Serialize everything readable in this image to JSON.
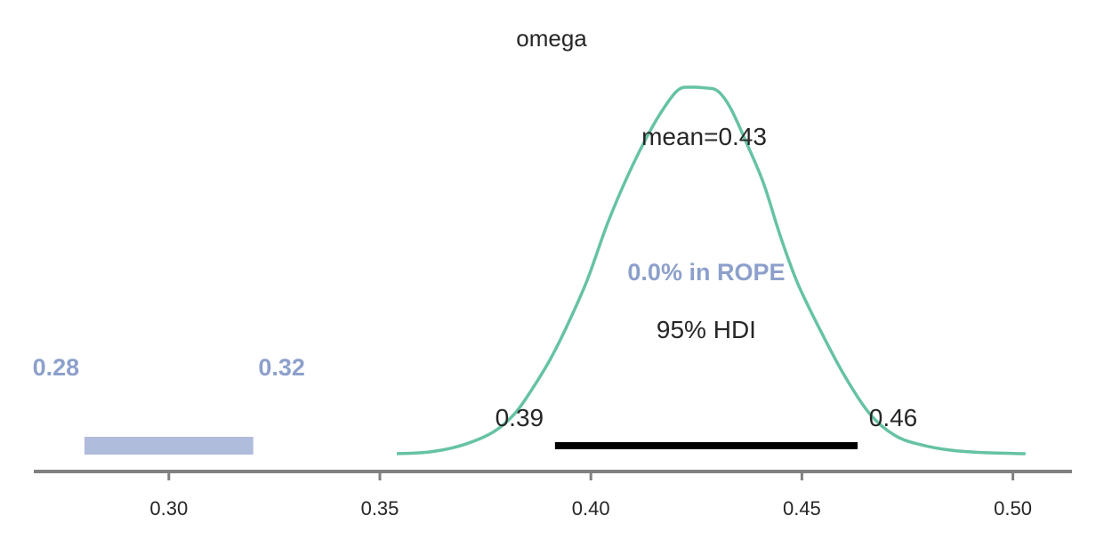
{
  "chart_data": {
    "type": "area",
    "title": "omega",
    "xlabel": "",
    "ylabel": "",
    "xlim": [
      0.268,
      0.514
    ],
    "grid": false,
    "x_ticks": [
      {
        "value": 0.3,
        "label": "0.30"
      },
      {
        "value": 0.35,
        "label": "0.35"
      },
      {
        "value": 0.4,
        "label": "0.40"
      },
      {
        "value": 0.45,
        "label": "0.45"
      },
      {
        "value": 0.5,
        "label": "0.50"
      }
    ],
    "density": {
      "x": [
        0.354,
        0.362,
        0.37,
        0.377,
        0.382,
        0.386,
        0.39,
        0.394,
        0.399,
        0.404,
        0.409,
        0.414,
        0.418,
        0.421,
        0.424,
        0.427,
        0.43,
        0.433,
        0.437,
        0.441,
        0.445,
        0.449,
        0.454,
        0.46,
        0.466,
        0.472,
        0.478,
        0.485,
        0.493,
        0.503
      ],
      "y": [
        0.0,
        0.005,
        0.025,
        0.06,
        0.11,
        0.175,
        0.25,
        0.34,
        0.47,
        0.63,
        0.765,
        0.88,
        0.955,
        0.995,
        1.0,
        0.998,
        0.99,
        0.945,
        0.845,
        0.735,
        0.59,
        0.465,
        0.345,
        0.215,
        0.11,
        0.05,
        0.025,
        0.01,
        0.003,
        0.0
      ],
      "color": "#66c2a5"
    },
    "mean": {
      "value": 0.43,
      "label": "mean=0.43"
    },
    "hdi": {
      "label": "95% HDI",
      "lower": 0.3915,
      "upper": 0.4632,
      "lower_label": "0.39",
      "upper_label": "0.46",
      "color": "#000000"
    },
    "rope": {
      "lower": 0.28,
      "upper": 0.32,
      "lower_label": "0.28",
      "upper_label": "0.32",
      "label": "0.0% in ROPE",
      "bar_color": "#b0bcdc",
      "text_color": "#8da0cb"
    },
    "axis_color": "#808080"
  }
}
